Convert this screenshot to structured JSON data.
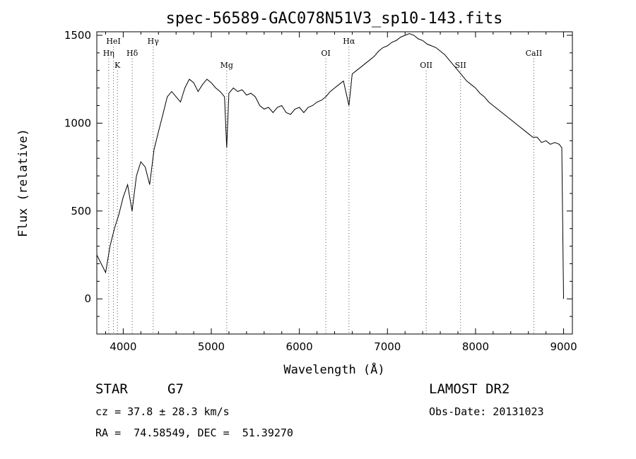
{
  "chart_data": {
    "type": "line",
    "title": "spec-56589-GAC078N51V3_sp10-143.fits",
    "xlabel": "Wavelength (Å)",
    "ylabel": "Flux (relative)",
    "xlim": [
      3700,
      9100
    ],
    "ylim": [
      -200,
      1520
    ],
    "xticks": [
      4000,
      5000,
      6000,
      7000,
      8000,
      9000
    ],
    "yticks": [
      0,
      500,
      1000,
      1500
    ],
    "grid": false,
    "spectral_lines": [
      {
        "label": "HeI",
        "wavelength": 3889,
        "row": 1
      },
      {
        "label": "Hη",
        "wavelength": 3835,
        "row": 2
      },
      {
        "label": "K",
        "wavelength": 3934,
        "row": 3
      },
      {
        "label": "Hδ",
        "wavelength": 4102,
        "row": 2
      },
      {
        "label": "Hγ",
        "wavelength": 4340,
        "row": 1
      },
      {
        "label": "Mg",
        "wavelength": 5175,
        "row": 3
      },
      {
        "label": "OI",
        "wavelength": 6300,
        "row": 2
      },
      {
        "label": "Hα",
        "wavelength": 6563,
        "row": 1
      },
      {
        "label": "OII",
        "wavelength": 7440,
        "row": 3
      },
      {
        "label": "SII",
        "wavelength": 7830,
        "row": 3
      },
      {
        "label": "CaII",
        "wavelength": 8662,
        "row": 2
      }
    ],
    "series": [
      {
        "x": [
          3700,
          3750,
          3800,
          3850,
          3900,
          3950,
          4000,
          4050,
          4100,
          4150,
          4200,
          4250,
          4300,
          4350,
          4400,
          4450,
          4500,
          4550,
          4600,
          4650,
          4700,
          4750,
          4800,
          4850,
          4900,
          4950,
          5000,
          5050,
          5100,
          5150,
          5175,
          5200,
          5250,
          5300,
          5350,
          5400,
          5450,
          5500,
          5550,
          5600,
          5650,
          5700,
          5750,
          5800,
          5850,
          5900,
          5950,
          6000,
          6050,
          6100,
          6150,
          6200,
          6250,
          6300,
          6350,
          6400,
          6450,
          6500,
          6563,
          6600,
          6650,
          6700,
          6750,
          6800,
          6850,
          6900,
          6950,
          7000,
          7050,
          7100,
          7150,
          7200,
          7250,
          7300,
          7350,
          7400,
          7450,
          7500,
          7550,
          7600,
          7650,
          7700,
          7750,
          7800,
          7850,
          7900,
          7950,
          8000,
          8050,
          8100,
          8150,
          8200,
          8250,
          8300,
          8350,
          8400,
          8450,
          8500,
          8550,
          8600,
          8650,
          8700,
          8750,
          8800,
          8850,
          8900,
          8950,
          8980,
          9000
        ],
        "y": [
          250,
          200,
          150,
          300,
          400,
          480,
          580,
          650,
          500,
          700,
          780,
          750,
          650,
          850,
          950,
          1050,
          1150,
          1180,
          1150,
          1120,
          1200,
          1250,
          1230,
          1180,
          1220,
          1250,
          1230,
          1200,
          1180,
          1150,
          860,
          1170,
          1200,
          1180,
          1190,
          1160,
          1170,
          1150,
          1100,
          1080,
          1090,
          1060,
          1090,
          1100,
          1060,
          1050,
          1080,
          1090,
          1060,
          1090,
          1100,
          1120,
          1130,
          1150,
          1180,
          1200,
          1220,
          1240,
          1100,
          1280,
          1300,
          1320,
          1340,
          1360,
          1380,
          1410,
          1430,
          1440,
          1460,
          1470,
          1490,
          1500,
          1510,
          1500,
          1480,
          1470,
          1450,
          1440,
          1430,
          1410,
          1390,
          1360,
          1330,
          1300,
          1270,
          1240,
          1220,
          1200,
          1170,
          1150,
          1120,
          1100,
          1080,
          1060,
          1040,
          1020,
          1000,
          980,
          960,
          940,
          920,
          920,
          890,
          900,
          880,
          890,
          880,
          860,
          0
        ]
      }
    ]
  },
  "footer": {
    "object_type": "STAR",
    "subclass": "G7",
    "survey": "LAMOST DR2",
    "redshift": "cz = 37.8 ± 28.3 km/s",
    "obs_date": "Obs-Date: 20131023",
    "coords": "RA =  74.58549, DEC =  51.39270"
  }
}
